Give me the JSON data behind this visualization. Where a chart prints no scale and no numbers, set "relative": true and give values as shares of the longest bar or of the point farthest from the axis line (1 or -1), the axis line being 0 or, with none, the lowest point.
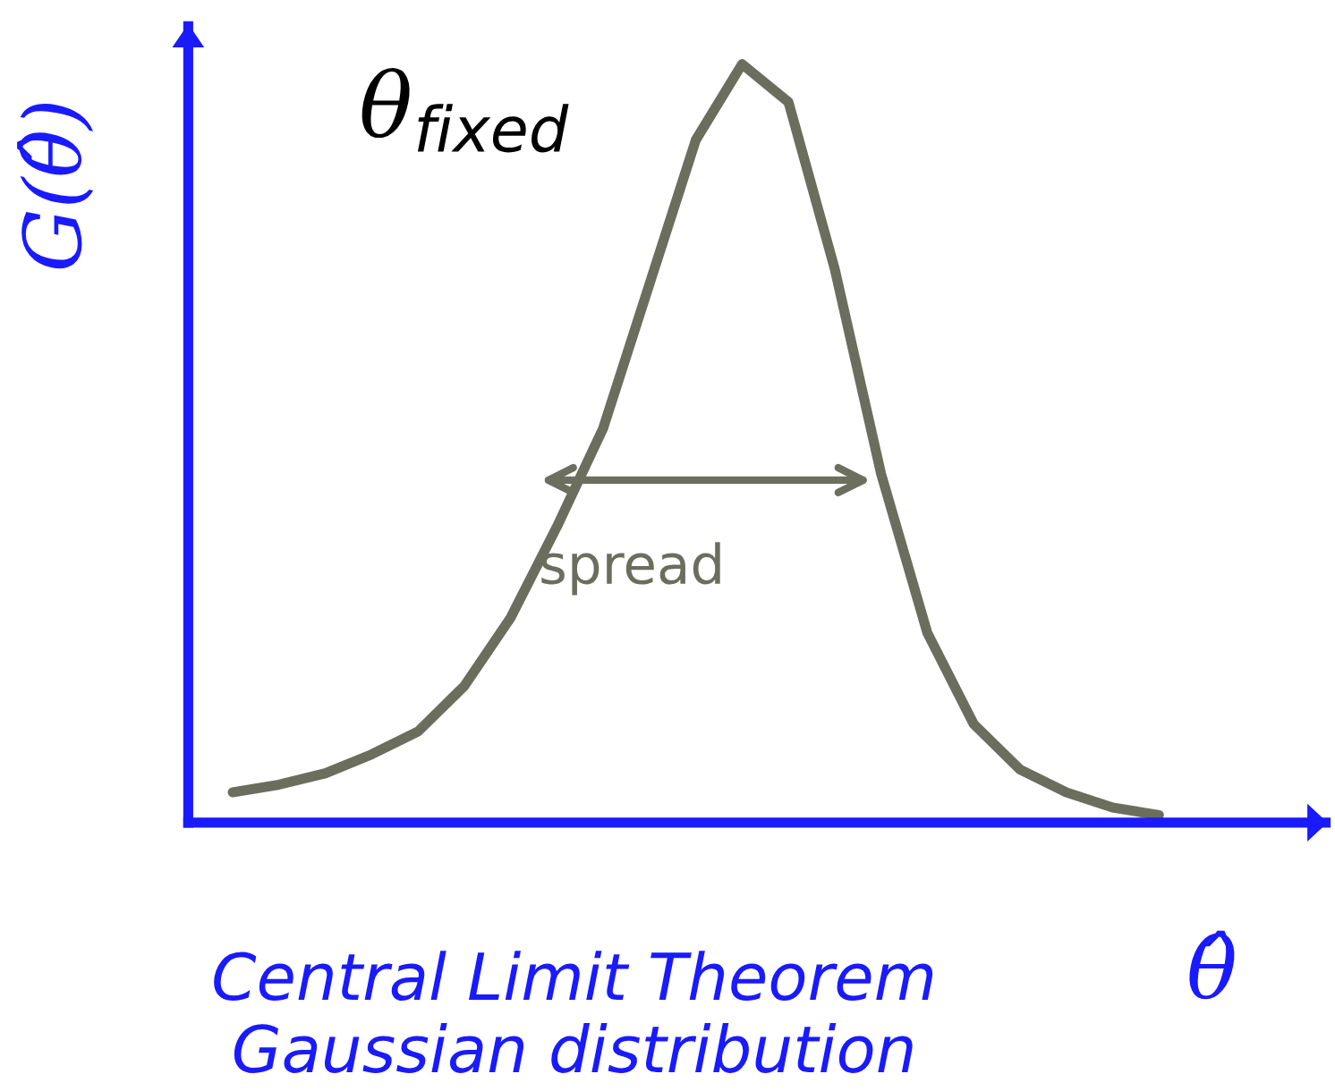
{
  "chart_data": {
    "type": "line",
    "relative": true,
    "categories": [
      null,
      null,
      null,
      null,
      null,
      null,
      null,
      null,
      null,
      null,
      null,
      null,
      null,
      null,
      null,
      null,
      null,
      null,
      null,
      null,
      null
    ],
    "series": [
      {
        "color": "#6b6e5c",
        "values": [
          0.04,
          0.05,
          0.065,
          0.09,
          0.12,
          0.18,
          0.27,
          0.39,
          0.52,
          0.71,
          0.9,
          1.0,
          0.95,
          0.73,
          0.46,
          0.25,
          0.13,
          0.07,
          0.04,
          0.02,
          0.01
        ]
      }
    ],
    "xlabel": "θ̂",
    "ylabel": "G(θ̂)",
    "annotations": [
      "θ$_{fixed}$",
      "spread",
      "Central Limit Theorem\nGaussian distribution"
    ],
    "legend": false,
    "marker": "none",
    "line_style": "solid"
  }
}
